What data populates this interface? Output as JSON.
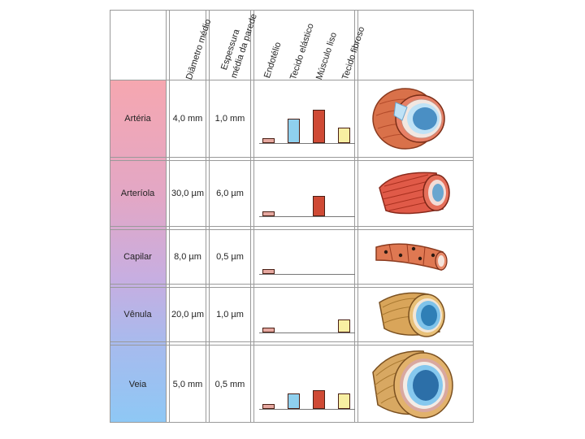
{
  "header": {
    "diametro": "Diâmetro médio",
    "espessura_l1": "Espessura",
    "espessura_l2": "média da parede",
    "endotelio": "Endotélio",
    "tecido_elastico": "Tecido elástico",
    "musculo_liso": "Músculo liso",
    "tecido_fibroso": "Tecido fibroso"
  },
  "colors": {
    "endotelio": "#e6a8a0",
    "tecido_elastico": "#8fd0ee",
    "musculo_liso": "#cf4a35",
    "tecido_fibroso": "#f8efa2"
  },
  "rows": [
    {
      "name": "Artéria",
      "diameter": "4,0 mm",
      "wall": "1,0 mm",
      "color": "#f4aab3",
      "bars": {
        "endotelio": 0.14,
        "tecido_elastico": 0.67,
        "musculo_liso": 0.9,
        "tecido_fibroso": 0.42
      }
    },
    {
      "name": "Arteríola",
      "diameter": "30,0 µm",
      "wall": "6,0 µm",
      "color": "#e5a8c4",
      "bars": {
        "endotelio": 0.14,
        "tecido_elastico": 0,
        "musculo_liso": 0.55,
        "tecido_fibroso": 0
      }
    },
    {
      "name": "Capilar",
      "diameter": "8,0 µm",
      "wall": "0,5 µm",
      "color": "#c9aee0",
      "bars": {
        "endotelio": 0.14,
        "tecido_elastico": 0,
        "musculo_liso": 0,
        "tecido_fibroso": 0
      }
    },
    {
      "name": "Vênula",
      "diameter": "20,0 µm",
      "wall": "1,0 µm",
      "color": "#a9b9ec",
      "bars": {
        "endotelio": 0.14,
        "tecido_elastico": 0,
        "musculo_liso": 0,
        "tecido_fibroso": 0.36
      }
    },
    {
      "name": "Veia",
      "diameter": "5,0 mm",
      "wall": "0,5 mm",
      "color": "#93c7f3",
      "bars": {
        "endotelio": 0.14,
        "tecido_elastico": 0.42,
        "musculo_liso": 0.5,
        "tecido_fibroso": 0.42
      }
    }
  ]
}
